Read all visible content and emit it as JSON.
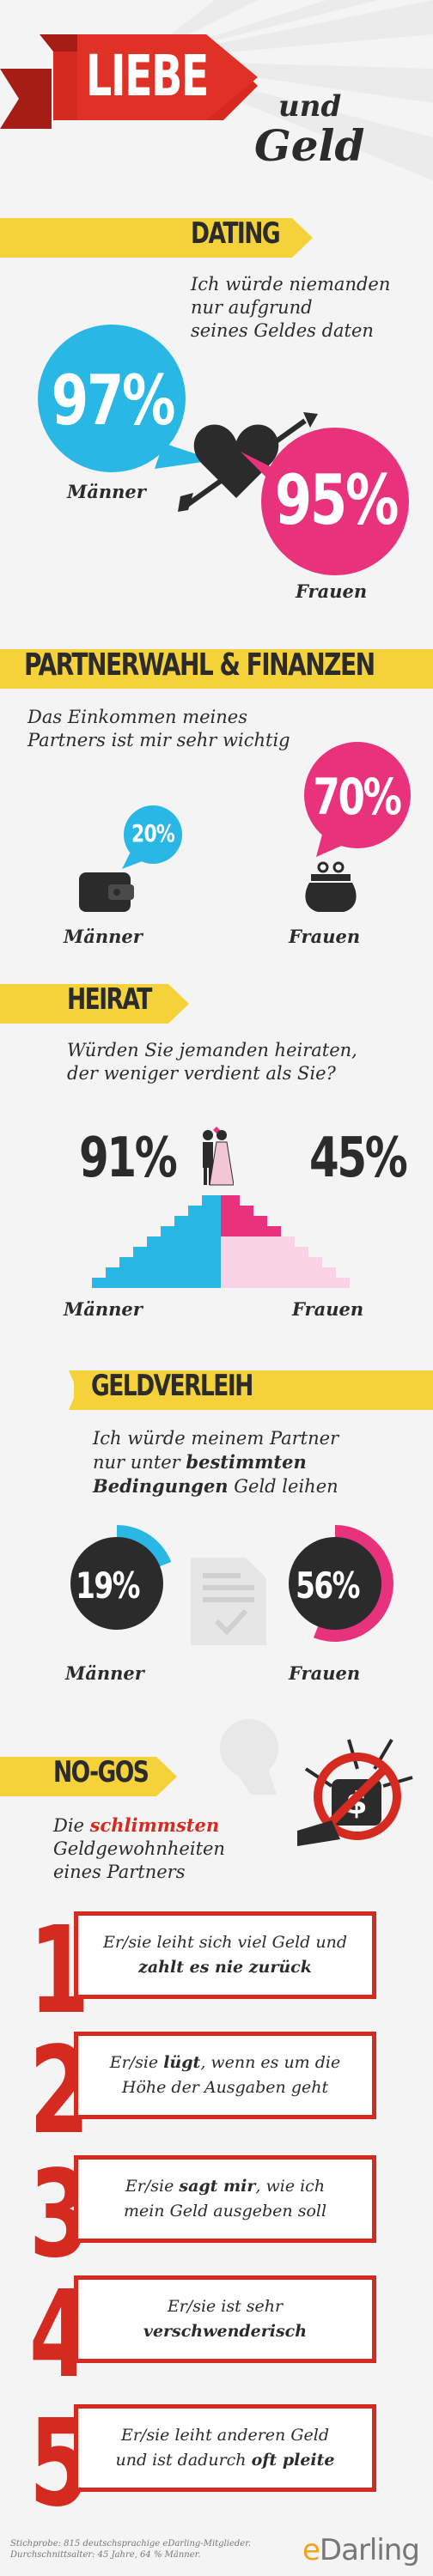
{
  "header": {
    "title_word1": "LIEBE",
    "title_word2": "und",
    "title_word3": "Geld"
  },
  "dating": {
    "title": "DATING",
    "question": [
      "Ich würde niemanden",
      "nur aufgrund",
      "seines Geldes daten"
    ],
    "men_pct": "97%",
    "women_pct": "95%",
    "men_label": "Männer",
    "women_label": "Frauen"
  },
  "partnerwahl": {
    "title": "PARTNERWAHL & FINANZEN",
    "question": [
      "Das Einkommen meines",
      "Partners ist mir sehr wichtig"
    ],
    "men_pct": "20%",
    "women_pct": "70%",
    "men_label": "Männer",
    "women_label": "Frauen"
  },
  "heirat": {
    "title": "HEIRAT",
    "question": [
      "Würden Sie jemanden heiraten,",
      "der weniger verdient als Sie?"
    ],
    "men_pct": "91%",
    "women_pct": "45%",
    "men_label": "Männer",
    "women_label": "Frauen",
    "men_value": 91,
    "women_value": 45
  },
  "geldverleih": {
    "title": "GELDVERLEIH",
    "question_l1": "Ich würde meinem Partner",
    "question_l2": "nur unter",
    "question_bold1": "bestimmten",
    "question_bold2": "Bedingungen",
    "question_l3": "Geld leihen",
    "men_pct": "19%",
    "women_pct": "56%",
    "men_value": 19,
    "women_value": 56,
    "men_label": "Männer",
    "women_label": "Frauen"
  },
  "nogos": {
    "title": "NO-GOS",
    "intro_l1": "Die",
    "intro_bold": "schlimmsten",
    "intro_l2": "Geldgewohnheiten",
    "intro_l3": "eines Partners",
    "items": [
      {
        "num": "1",
        "a": "Er/sie leiht sich viel Geld und",
        "b": "zahlt es nie zurück",
        "c": ""
      },
      {
        "num": "2",
        "a": "Er/sie ",
        "b": "lügt",
        "c": ", wenn es um die",
        "d": "Höhe der Ausgaben geht"
      },
      {
        "num": "3",
        "a": "Er/sie ",
        "b": "sagt mir",
        "c": ", wie ich",
        "d": "mein Geld ausgeben soll"
      },
      {
        "num": "4",
        "a": "Er/sie ist sehr",
        "b": "verschwenderisch",
        "c": ""
      },
      {
        "num": "5",
        "a": "Er/sie leiht anderen Geld",
        "b": "und ist dadurch ",
        "c": "oft pleite"
      }
    ]
  },
  "footer": {
    "note_l1": "Stichprobe:  815 deutschsprachige eDarling-Mitglieder.",
    "note_l2": "Durchschnittsalter: 45 Jahre, 64 % Männer.",
    "brand_e": "e",
    "brand_rest": "Darling"
  },
  "colors": {
    "blue": "#29b7e5",
    "pink": "#e8327c",
    "yellow": "#f5d23a",
    "red": "#d52a20",
    "dark": "#2b2b2b"
  }
}
